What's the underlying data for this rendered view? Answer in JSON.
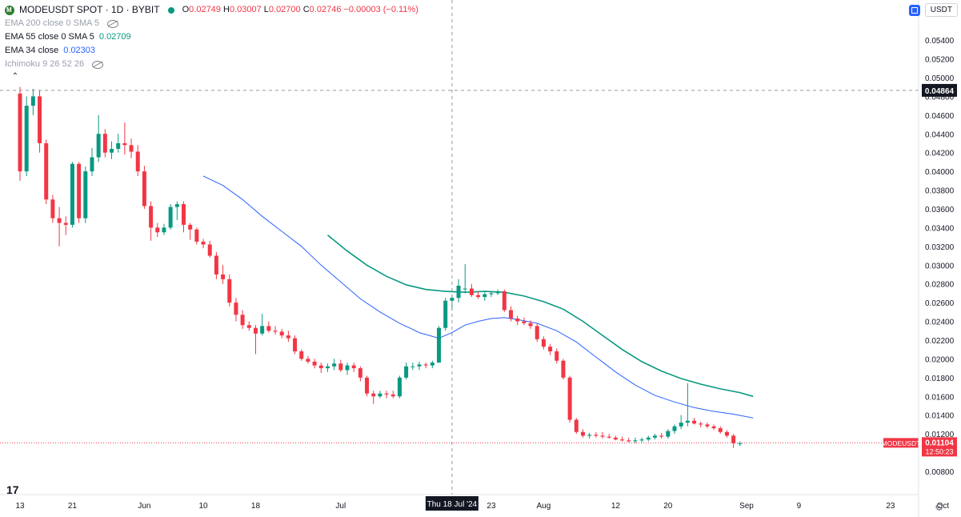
{
  "header": {
    "symbol": "MODEUSDT SPOT · 1D · BYBIT",
    "open_label": "O",
    "open": "0.02749",
    "high_label": "H",
    "high": "0.03007",
    "low_label": "L",
    "low": "0.02700",
    "close_label": "C",
    "close": "0.02746",
    "change": "−0.00003 (−0.11%)"
  },
  "indicators": [
    {
      "label": "EMA 200 close 0 SMA 5",
      "value": "",
      "hidden": true
    },
    {
      "label": "EMA 55 close 0 SMA 5",
      "value": "0.02709",
      "hidden": false
    },
    {
      "label": "EMA 34 close",
      "value": "0.02303",
      "hidden": false
    },
    {
      "label": "Ichimoku 9 26 52 26",
      "value": "",
      "hidden": true
    }
  ],
  "currency_button": "USDT",
  "colors": {
    "up": "#089981",
    "down": "#f23645",
    "ema55": "#089981",
    "ema34": "#2962ff",
    "axis_text": "#131722",
    "grid": "#f0f3fa"
  },
  "chart_data": {
    "type": "candlestick",
    "y_ticks": [
      "0.05400",
      "0.05200",
      "0.05000",
      "0.04800",
      "0.04600",
      "0.04400",
      "0.04200",
      "0.04000",
      "0.03800",
      "0.03600",
      "0.03400",
      "0.03200",
      "0.03000",
      "0.02800",
      "0.02600",
      "0.02400",
      "0.02200",
      "0.02000",
      "0.01800",
      "0.01600",
      "0.01400",
      "0.01200",
      "0.00800"
    ],
    "y_tick_values": [
      0.054,
      0.052,
      0.05,
      0.048,
      0.046,
      0.044,
      0.042,
      0.04,
      0.038,
      0.036,
      0.034,
      0.032,
      0.03,
      0.028,
      0.026,
      0.024,
      0.022,
      0.02,
      0.018,
      0.016,
      0.014,
      0.012,
      0.008
    ],
    "ylim": [
      0.0074,
      0.0564
    ],
    "x_ticks": [
      {
        "label": "13",
        "day": 0
      },
      {
        "label": "21",
        "day": 8
      },
      {
        "label": "Jun",
        "day": 19
      },
      {
        "label": "10",
        "day": 28
      },
      {
        "label": "18",
        "day": 36
      },
      {
        "label": "Jul",
        "day": 49
      },
      {
        "label": "23",
        "day": 72
      },
      {
        "label": "Aug",
        "day": 80
      },
      {
        "label": "12",
        "day": 91
      },
      {
        "label": "20",
        "day": 99
      },
      {
        "label": "Sep",
        "day": 111
      },
      {
        "label": "9",
        "day": 119
      },
      {
        "label": "23",
        "day": 133
      },
      {
        "label": "Oct",
        "day": 141
      }
    ],
    "x_start": "13 May 2024",
    "crosshair": {
      "date_label": "Thu 18 Jul '24",
      "day": 66,
      "price_label": "0.04864",
      "price": 0.04864
    },
    "last_price": {
      "symbol": "MODEUSDT",
      "price_label": "0.01104",
      "countdown": "12:50:23",
      "price": 0.01104
    },
    "candles": [
      [
        0.0483,
        0.049,
        0.039,
        0.04
      ],
      [
        0.04,
        0.048,
        0.0395,
        0.047
      ],
      [
        0.047,
        0.0488,
        0.046,
        0.048
      ],
      [
        0.048,
        0.0486,
        0.042,
        0.043
      ],
      [
        0.043,
        0.0434,
        0.0365,
        0.037
      ],
      [
        0.037,
        0.0375,
        0.0345,
        0.035
      ],
      [
        0.035,
        0.0362,
        0.032,
        0.0345
      ],
      [
        0.0345,
        0.0352,
        0.0332,
        0.0343
      ],
      [
        0.0343,
        0.041,
        0.034,
        0.0408
      ],
      [
        0.0408,
        0.041,
        0.0345,
        0.035
      ],
      [
        0.035,
        0.0405,
        0.0345,
        0.04
      ],
      [
        0.04,
        0.0425,
        0.0395,
        0.0415
      ],
      [
        0.0415,
        0.046,
        0.041,
        0.044
      ],
      [
        0.044,
        0.0445,
        0.0415,
        0.042
      ],
      [
        0.042,
        0.0432,
        0.0413,
        0.0424
      ],
      [
        0.0424,
        0.044,
        0.042,
        0.043
      ],
      [
        0.043,
        0.0452,
        0.0418,
        0.0428
      ],
      [
        0.0428,
        0.0435,
        0.0414,
        0.0421
      ],
      [
        0.0421,
        0.0428,
        0.0395,
        0.04
      ],
      [
        0.04,
        0.0406,
        0.036,
        0.0363
      ],
      [
        0.0363,
        0.0368,
        0.0326,
        0.034
      ],
      [
        0.034,
        0.0345,
        0.033,
        0.0335
      ],
      [
        0.0335,
        0.0344,
        0.0332,
        0.034
      ],
      [
        0.034,
        0.0365,
        0.0338,
        0.0362
      ],
      [
        0.0362,
        0.0368,
        0.0348,
        0.0365
      ],
      [
        0.0365,
        0.0368,
        0.0335,
        0.0343
      ],
      [
        0.0343,
        0.0345,
        0.0327,
        0.0338
      ],
      [
        0.0338,
        0.034,
        0.0322,
        0.0325
      ],
      [
        0.0325,
        0.0328,
        0.0318,
        0.0322
      ],
      [
        0.0322,
        0.0326,
        0.0308,
        0.031
      ],
      [
        0.031,
        0.0314,
        0.0285,
        0.029
      ],
      [
        0.029,
        0.03,
        0.028,
        0.0285
      ],
      [
        0.0285,
        0.029,
        0.0256,
        0.026
      ],
      [
        0.026,
        0.0265,
        0.024,
        0.0247
      ],
      [
        0.0247,
        0.0252,
        0.0232,
        0.0236
      ],
      [
        0.0236,
        0.024,
        0.023,
        0.0233
      ],
      [
        0.0233,
        0.0236,
        0.0205,
        0.0227
      ],
      [
        0.0227,
        0.0248,
        0.0225,
        0.0235
      ],
      [
        0.0235,
        0.024,
        0.0228,
        0.023
      ],
      [
        0.023,
        0.0235,
        0.0226,
        0.0229
      ],
      [
        0.0229,
        0.0232,
        0.0222,
        0.0225
      ],
      [
        0.0225,
        0.023,
        0.0218,
        0.0222
      ],
      [
        0.0222,
        0.0225,
        0.0205,
        0.0208
      ],
      [
        0.0208,
        0.021,
        0.0198,
        0.02
      ],
      [
        0.02,
        0.0203,
        0.0195,
        0.0197
      ],
      [
        0.0197,
        0.02,
        0.019,
        0.0193
      ],
      [
        0.0193,
        0.0196,
        0.0185,
        0.019
      ],
      [
        0.019,
        0.0195,
        0.0186,
        0.0192
      ],
      [
        0.0192,
        0.02,
        0.0188,
        0.0195
      ],
      [
        0.0195,
        0.0199,
        0.0186,
        0.0188
      ],
      [
        0.0188,
        0.0196,
        0.0183,
        0.0193
      ],
      [
        0.0193,
        0.0196,
        0.0186,
        0.019
      ],
      [
        0.019,
        0.0192,
        0.0176,
        0.018
      ],
      [
        0.018,
        0.0182,
        0.016,
        0.0163
      ],
      [
        0.0163,
        0.0166,
        0.0152,
        0.016
      ],
      [
        0.016,
        0.0166,
        0.0158,
        0.0163
      ],
      [
        0.0163,
        0.0166,
        0.0158,
        0.0162
      ],
      [
        0.0162,
        0.0166,
        0.0158,
        0.016
      ],
      [
        0.016,
        0.0182,
        0.0158,
        0.018
      ],
      [
        0.018,
        0.0196,
        0.0178,
        0.0192
      ],
      [
        0.0192,
        0.0196,
        0.0188,
        0.0192
      ],
      [
        0.0192,
        0.0197,
        0.0188,
        0.0194
      ],
      [
        0.0194,
        0.0196,
        0.019,
        0.0193
      ],
      [
        0.0193,
        0.0198,
        0.019,
        0.0196
      ],
      [
        0.0196,
        0.0235,
        0.0196,
        0.0233
      ],
      [
        0.0233,
        0.0265,
        0.023,
        0.0262
      ],
      [
        0.0262,
        0.0268,
        0.0252,
        0.0265
      ],
      [
        0.0265,
        0.0285,
        0.026,
        0.0278
      ],
      [
        0.0275,
        0.0301,
        0.027,
        0.0275
      ],
      [
        0.0275,
        0.028,
        0.0266,
        0.0268
      ],
      [
        0.0268,
        0.0272,
        0.0264,
        0.0266
      ],
      [
        0.0266,
        0.0271,
        0.0262,
        0.0269
      ],
      [
        0.0269,
        0.0272,
        0.0266,
        0.027
      ],
      [
        0.027,
        0.0274,
        0.0268,
        0.0272
      ],
      [
        0.0272,
        0.0274,
        0.025,
        0.0252
      ],
      [
        0.0252,
        0.0256,
        0.024,
        0.0243
      ],
      [
        0.0243,
        0.0246,
        0.0236,
        0.024
      ],
      [
        0.024,
        0.0244,
        0.0236,
        0.0238
      ],
      [
        0.0238,
        0.0241,
        0.0232,
        0.0235
      ],
      [
        0.0235,
        0.0238,
        0.0218,
        0.0221
      ],
      [
        0.0221,
        0.0224,
        0.021,
        0.0213
      ],
      [
        0.0213,
        0.0216,
        0.0204,
        0.0208
      ],
      [
        0.0208,
        0.0211,
        0.0195,
        0.0198
      ],
      [
        0.0198,
        0.02,
        0.0178,
        0.018
      ],
      [
        0.018,
        0.0182,
        0.0132,
        0.0135
      ],
      [
        0.0135,
        0.0137,
        0.012,
        0.0122
      ],
      [
        0.0122,
        0.0125,
        0.0116,
        0.0118
      ],
      [
        0.0118,
        0.0121,
        0.0115,
        0.0119
      ],
      [
        0.0119,
        0.0122,
        0.0116,
        0.0118
      ],
      [
        0.0118,
        0.0122,
        0.0115,
        0.0117
      ],
      [
        0.0117,
        0.012,
        0.0115,
        0.0116
      ],
      [
        0.0116,
        0.0118,
        0.0113,
        0.0114
      ],
      [
        0.0114,
        0.0117,
        0.0112,
        0.0113
      ],
      [
        0.0113,
        0.0116,
        0.0111,
        0.0112
      ],
      [
        0.0112,
        0.0116,
        0.011,
        0.0113
      ],
      [
        0.0113,
        0.0116,
        0.0111,
        0.0114
      ],
      [
        0.0114,
        0.0118,
        0.0112,
        0.0116
      ],
      [
        0.0116,
        0.012,
        0.0114,
        0.0118
      ],
      [
        0.0118,
        0.0121,
        0.0115,
        0.0117
      ],
      [
        0.0117,
        0.0125,
        0.0115,
        0.0123
      ],
      [
        0.0123,
        0.013,
        0.012,
        0.0128
      ],
      [
        0.0128,
        0.014,
        0.0125,
        0.0132
      ],
      [
        0.0132,
        0.0174,
        0.0128,
        0.0134
      ],
      [
        0.0134,
        0.0137,
        0.013,
        0.0131
      ],
      [
        0.0131,
        0.0133,
        0.0127,
        0.013
      ],
      [
        0.013,
        0.0132,
        0.0126,
        0.0128
      ],
      [
        0.0128,
        0.013,
        0.0124,
        0.0126
      ],
      [
        0.0126,
        0.0128,
        0.012,
        0.0122
      ],
      [
        0.0122,
        0.0124,
        0.0116,
        0.0118
      ],
      [
        0.0118,
        0.012,
        0.0105,
        0.011
      ],
      [
        0.011,
        0.0112,
        0.0107,
        0.011
      ]
    ],
    "ema34": [
      [
        28,
        0.0395
      ],
      [
        31,
        0.0385
      ],
      [
        34,
        0.037
      ],
      [
        37,
        0.0352
      ],
      [
        40,
        0.0336
      ],
      [
        43,
        0.032
      ],
      [
        46,
        0.03
      ],
      [
        49,
        0.0282
      ],
      [
        52,
        0.0264
      ],
      [
        55,
        0.025
      ],
      [
        58,
        0.0238
      ],
      [
        61,
        0.0228
      ],
      [
        64,
        0.0222
      ],
      [
        66,
        0.0228
      ],
      [
        68,
        0.0236
      ],
      [
        70,
        0.024
      ],
      [
        72,
        0.0243
      ],
      [
        74,
        0.0244
      ],
      [
        76,
        0.0242
      ],
      [
        79,
        0.0238
      ],
      [
        82,
        0.023
      ],
      [
        85,
        0.0218
      ],
      [
        88,
        0.0202
      ],
      [
        91,
        0.0186
      ],
      [
        94,
        0.0172
      ],
      [
        97,
        0.0161
      ],
      [
        100,
        0.0154
      ],
      [
        103,
        0.0148
      ],
      [
        106,
        0.0144
      ],
      [
        109,
        0.0141
      ],
      [
        112,
        0.0137
      ]
    ],
    "ema55": [
      [
        47,
        0.0332
      ],
      [
        50,
        0.0315
      ],
      [
        53,
        0.03
      ],
      [
        56,
        0.0288
      ],
      [
        59,
        0.0279
      ],
      [
        62,
        0.0274
      ],
      [
        65,
        0.0272
      ],
      [
        68,
        0.0271
      ],
      [
        71,
        0.0272
      ],
      [
        74,
        0.0271
      ],
      [
        77,
        0.0267
      ],
      [
        80,
        0.0261
      ],
      [
        83,
        0.0253
      ],
      [
        86,
        0.024
      ],
      [
        89,
        0.0225
      ],
      [
        92,
        0.021
      ],
      [
        95,
        0.0197
      ],
      [
        98,
        0.0187
      ],
      [
        101,
        0.0179
      ],
      [
        104,
        0.0173
      ],
      [
        107,
        0.0168
      ],
      [
        110,
        0.0164
      ],
      [
        112,
        0.016
      ]
    ]
  }
}
